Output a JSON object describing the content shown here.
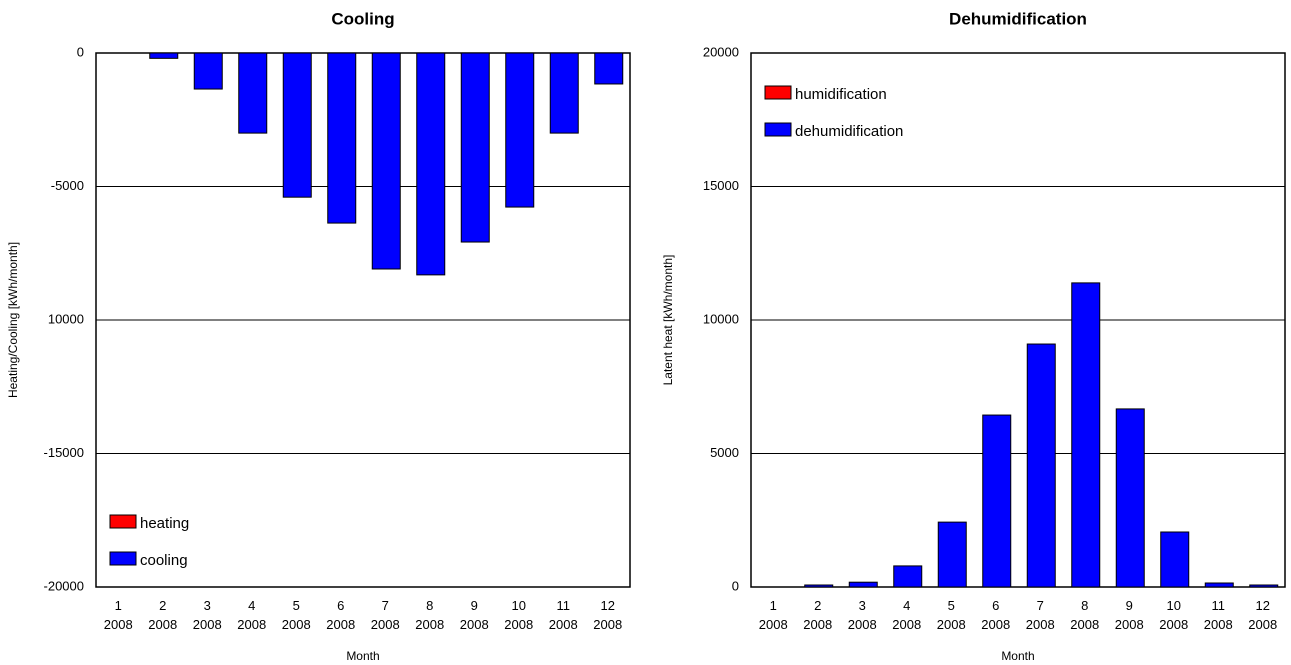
{
  "chart_data": [
    {
      "type": "bar",
      "title": "Cooling",
      "xlabel": "Month",
      "ylabel": "Heating/Cooling [kWh/month]",
      "categories": [
        "1 2008",
        "2 2008",
        "3 2008",
        "4 2008",
        "5 2008",
        "6 2008",
        "7 2008",
        "8 2008",
        "9 2008",
        "10 2008",
        "11 2008",
        "12 2008"
      ],
      "series": [
        {
          "name": "heating",
          "color": "#ff0000",
          "values": [
            0,
            0,
            0,
            0,
            0,
            0,
            0,
            0,
            0,
            0,
            0,
            0
          ]
        },
        {
          "name": "cooling",
          "color": "#0000ff",
          "values": [
            0,
            -200,
            -1350,
            -3000,
            -5400,
            -6370,
            -8090,
            -8310,
            -7080,
            -5770,
            -3000,
            -1160
          ]
        }
      ],
      "ylim": [
        -20000,
        0
      ],
      "yticks": [
        0,
        -5000,
        {
          "value": -10000,
          "label": "10000"
        },
        -15000,
        -20000
      ],
      "grid": true,
      "legend": "lower left"
    },
    {
      "type": "bar",
      "title": "Dehumidification",
      "xlabel": "Month",
      "ylabel": "Latent heat [kWh/month]",
      "categories": [
        "1 2008",
        "2 2008",
        "3 2008",
        "4 2008",
        "5 2008",
        "6 2008",
        "7 2008",
        "8 2008",
        "9 2008",
        "10 2008",
        "11 2008",
        "12 2008"
      ],
      "series": [
        {
          "name": "humidification",
          "color": "#ff0000",
          "values": [
            0,
            0,
            0,
            0,
            0,
            0,
            0,
            0,
            0,
            0,
            0,
            0
          ]
        },
        {
          "name": "dehumidification",
          "color": "#0000ff",
          "values": [
            0,
            75,
            180,
            790,
            2430,
            6440,
            9100,
            11390,
            6670,
            2060,
            150,
            75
          ]
        }
      ],
      "ylim": [
        0,
        20000
      ],
      "yticks": [
        0,
        5000,
        10000,
        15000,
        20000
      ],
      "grid": true,
      "legend": "upper left"
    }
  ]
}
